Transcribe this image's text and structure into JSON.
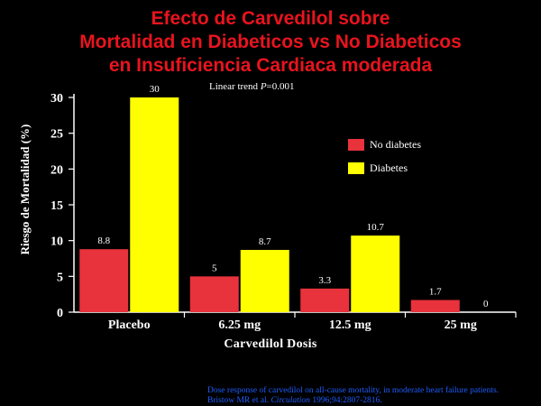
{
  "title": {
    "line1": "Efecto de Carvedilol sobre",
    "line2": "Mortalidad en Diabeticos vs No Diabeticos",
    "line3": "en Insuficiencia Cardiaca moderada"
  },
  "annotation": "Linear trend P=0.001",
  "footnote": {
    "line1": "Dose response of carvedilol on all-cause mortality, in moderate heart failure patients.",
    "line2_pre": "Bristow MR et al. ",
    "line2_journal": "Circulation",
    "line2_post": " 1996;94:2807-2816."
  },
  "colors": {
    "background": "#000000",
    "title": "#e8141e",
    "no_diabetes": "#e8323c",
    "diabetes": "#ffff00",
    "footnote": "#1e5eff"
  },
  "chart_data": {
    "type": "bar",
    "categories": [
      "Placebo",
      "6.25 mg",
      "12.5 mg",
      "25 mg"
    ],
    "series": [
      {
        "name": "No diabetes",
        "values": [
          8.8,
          5,
          3.3,
          1.7
        ],
        "labels": [
          "8.8",
          "5",
          "3.3",
          "1.7"
        ]
      },
      {
        "name": "Diabetes",
        "values": [
          30,
          8.7,
          10.7,
          0
        ],
        "labels": [
          "30",
          "8.7",
          "10.7",
          "0"
        ]
      }
    ],
    "xlabel": "Carvedilol Dosis",
    "ylabel": "Riesgo de Mortalidad  (%)",
    "ylim": [
      0,
      30
    ],
    "yticks": [
      0,
      5,
      10,
      15,
      20,
      25,
      30
    ],
    "grid": false,
    "legend_position": "top-right"
  }
}
